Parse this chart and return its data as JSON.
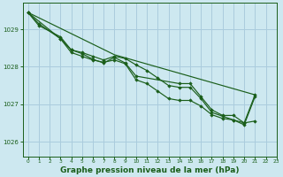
{
  "background_color": "#cde8f0",
  "plot_bg_color": "#cde8f0",
  "grid_color": "#aaccdd",
  "line_color": "#1a5e1a",
  "marker_color": "#1a5e1a",
  "xlabel": "Graphe pression niveau de la mer (hPa)",
  "xlabel_fontsize": 6.5,
  "xlabel_color": "#1a5e1a",
  "ylabel_ticks": [
    1026,
    1027,
    1028,
    1029
  ],
  "xlim": [
    -0.5,
    23
  ],
  "ylim": [
    1025.6,
    1029.7
  ],
  "xticks": [
    0,
    1,
    2,
    3,
    4,
    5,
    6,
    7,
    8,
    9,
    10,
    11,
    12,
    13,
    14,
    15,
    16,
    17,
    18,
    19,
    20,
    21,
    22,
    23
  ],
  "series": [
    {
      "x": [
        0,
        1,
        3,
        4,
        5,
        6,
        7,
        8,
        9,
        10,
        14,
        15,
        16,
        17,
        18,
        19,
        20,
        21
      ],
      "y": [
        1029.45,
        1029.15,
        1028.75,
        1028.45,
        1028.35,
        1028.2,
        1028.1,
        1028.25,
        1028.1,
        1027.75,
        1027.55,
        1027.55,
        1027.2,
        1026.85,
        1026.7,
        1026.7,
        1026.5,
        1027.25
      ],
      "has_marker": true
    },
    {
      "x": [
        0,
        1,
        3,
        4,
        5,
        6,
        7,
        8,
        9,
        10,
        11,
        12,
        13,
        14,
        15,
        16,
        17,
        18,
        19,
        20,
        21
      ],
      "y": [
        1029.45,
        1029.1,
        1028.8,
        1028.45,
        1028.38,
        1028.28,
        1028.18,
        1028.28,
        1028.22,
        1028.05,
        1027.9,
        1027.7,
        1027.5,
        1027.45,
        1027.45,
        1027.15,
        1026.78,
        1026.68,
        1026.58,
        1026.45,
        1027.2
      ],
      "has_marker": true
    },
    {
      "x": [
        0,
        3,
        4,
        5,
        6,
        7,
        8,
        9,
        10,
        11,
        12,
        13,
        14,
        15,
        16,
        17,
        18,
        19,
        20,
        21
      ],
      "y": [
        1029.45,
        1028.75,
        1028.38,
        1028.28,
        1028.18,
        1028.12,
        1028.18,
        1028.08,
        1027.65,
        1027.55,
        1027.35,
        1027.15,
        1027.1,
        1027.1,
        1026.95,
        1026.72,
        1026.62,
        1026.58,
        1026.5,
        1026.55
      ],
      "has_marker": true
    },
    {
      "x": [
        0,
        8,
        21
      ],
      "y": [
        1029.45,
        1028.32,
        1027.25
      ],
      "has_marker": false
    }
  ]
}
